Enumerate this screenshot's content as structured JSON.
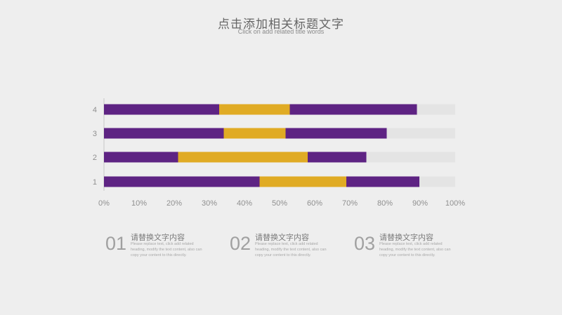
{
  "header": {
    "title": "点击添加相关标题文字",
    "subtitle": "Click on add related title words"
  },
  "colors": {
    "segment_a": "#5e2383",
    "segment_b": "#e0ab24",
    "remainder": "#e4e4e4",
    "axis_text": "#8f8f8f"
  },
  "chart_data": {
    "type": "bar",
    "orientation": "horizontal",
    "stacked": true,
    "categories": [
      "1",
      "2",
      "3",
      "4"
    ],
    "series": [
      {
        "values": [
          44.3,
          21.1,
          34.1,
          32.8
        ],
        "color": "#5e2383"
      },
      {
        "values": [
          24.7,
          36.9,
          17.6,
          20.1
        ],
        "color": "#e0ab24"
      },
      {
        "values": [
          20.8,
          16.7,
          28.8,
          36.2
        ],
        "color": "#5e2383"
      },
      {
        "values": [
          10.2,
          25.3,
          19.5,
          10.9
        ],
        "color": "#e4e4e4"
      }
    ],
    "xlim": [
      0,
      100
    ],
    "xticks": [
      "0%",
      "10%",
      "20%",
      "30%",
      "40%",
      "50%",
      "60%",
      "70%",
      "80%",
      "90%",
      "100%"
    ],
    "grid": false,
    "legend": "none"
  },
  "blocks": [
    {
      "number": "01",
      "heading": "请替换文字内容",
      "body": "Please replace text, click add related heading, modify the text content, also can copy your content to this directly."
    },
    {
      "number": "02",
      "heading": "请替换文字内容",
      "body": "Please replace text, click add related heading, modify the text content, also can copy your content to this directly."
    },
    {
      "number": "03",
      "heading": "请替换文字内容",
      "body": "Please replace text, click add related heading, modify the text content, also can copy your content to this directly."
    }
  ]
}
